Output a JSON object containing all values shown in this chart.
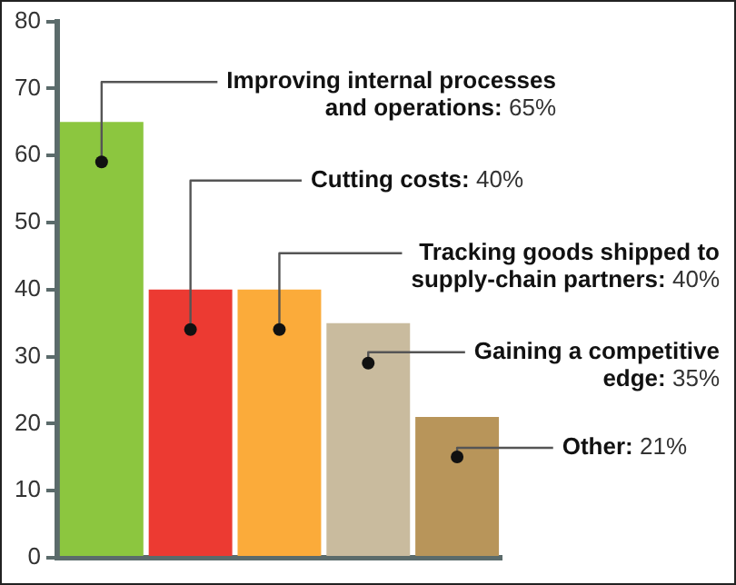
{
  "chart_data": {
    "type": "bar",
    "categories": [
      null,
      null,
      null,
      null,
      null
    ],
    "values": [
      65,
      40,
      40,
      35,
      21
    ],
    "colors": [
      "#8cc63f",
      "#ec3a32",
      "#fbab3a",
      "#c9bb9e",
      "#b8955a"
    ],
    "value_labels": [
      "Improving internal processes and operations: 65%",
      "Cutting costs: 40%",
      "Tracking goods shipped to supply-chain partners: 40%",
      "Gaining a competitive edge: 35%",
      "Other: 21%"
    ],
    "ylim": [
      0,
      80
    ],
    "yticks": [
      0,
      10,
      20,
      30,
      40,
      50,
      60,
      70,
      80
    ],
    "tick_labels": "y"
  }
}
